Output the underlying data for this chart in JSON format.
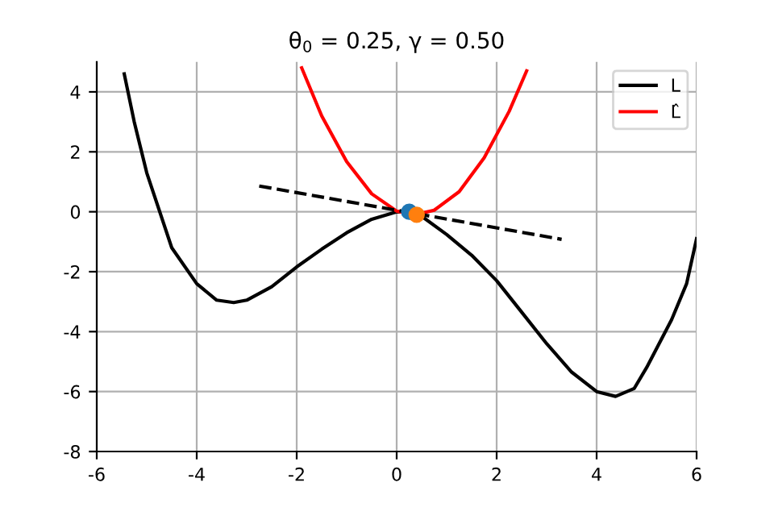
{
  "chart_data": {
    "type": "line",
    "title": "θ$_{0}$ = 0.25, γ = 0.50",
    "xlim": [
      -6,
      6
    ],
    "ylim": [
      -8,
      5
    ],
    "xticks": [
      -6,
      -4,
      -2,
      0,
      2,
      4,
      6
    ],
    "yticks": [
      -8,
      -6,
      -4,
      -2,
      0,
      2,
      4
    ],
    "grid": true,
    "legend": "top right",
    "series": [
      {
        "name": "L",
        "color": "#000000",
        "line_style": "solid",
        "x": [
          -5.45,
          -5.25,
          -5,
          -4.5,
          -4,
          -3.6,
          -3.26,
          -3,
          -2.5,
          -2,
          -1.5,
          -1,
          -0.5,
          0,
          0.25,
          0.5,
          1,
          1.5,
          2,
          2.5,
          3,
          3.5,
          4,
          4.38,
          4.75,
          5,
          5.5,
          5.8,
          6
        ],
        "values": [
          4.6,
          3.0,
          1.3,
          -1.2,
          -2.4,
          -2.95,
          -3.03,
          -2.95,
          -2.5,
          -1.84,
          -1.25,
          -0.7,
          -0.25,
          0,
          -0.02,
          -0.15,
          -0.76,
          -1.45,
          -2.3,
          -3.35,
          -4.4,
          -5.35,
          -6.0,
          -6.16,
          -5.9,
          -5.2,
          -3.6,
          -2.4,
          -0.9
        ]
      },
      {
        "name": "L̂",
        "color": "#ff0000",
        "line_style": "solid",
        "x": [
          -1.9,
          -1.5,
          -1,
          -0.5,
          0,
          0.36,
          0.75,
          1.25,
          1.75,
          2.25,
          2.6
        ],
        "values": [
          4.8,
          3.2,
          1.67,
          0.6,
          0.02,
          -0.1,
          0.05,
          0.67,
          1.8,
          3.35,
          4.7
        ]
      },
      {
        "color": "#000000",
        "line_style": "dashed",
        "x": [
          -2.75,
          3.3
        ],
        "values": [
          0.86,
          -0.92
        ]
      },
      {
        "color": "#1f77b4",
        "type": "scatter",
        "marker": "circle",
        "x": [
          0.25
        ],
        "values": [
          0
        ]
      },
      {
        "color": "#ff7f0e",
        "type": "scatter",
        "marker": "circle",
        "x": [
          0.4
        ],
        "values": [
          -0.1
        ]
      }
    ]
  }
}
